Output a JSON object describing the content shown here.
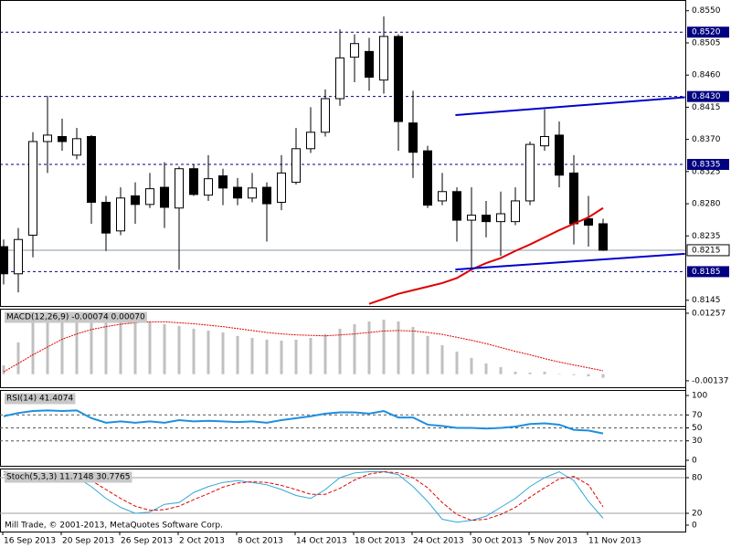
{
  "chart_data": [
    {
      "type": "candlestick",
      "categories": [
        "16 Sep 2013",
        null,
        null,
        null,
        "20 Sep 2013",
        null,
        null,
        null,
        "26 Sep 2013",
        null,
        null,
        null,
        "2 Oct 2013",
        null,
        null,
        null,
        "8 Oct 2013",
        null,
        null,
        null,
        "14 Oct 2013",
        null,
        null,
        null,
        "18 Oct 2013",
        null,
        null,
        null,
        "24 Oct 2013",
        null,
        null,
        null,
        "30 Oct 2013",
        null,
        null,
        null,
        "5 Nov 2013",
        null,
        null,
        null,
        "11 Nov 2013",
        null
      ],
      "open": [
        0.822,
        0.8182,
        0.8236,
        0.8367,
        0.8374,
        0.8348,
        0.8374,
        0.8282,
        0.8242,
        0.8291,
        0.8279,
        0.8303,
        0.8274,
        0.8329,
        0.8292,
        0.8319,
        0.8303,
        0.8288,
        0.8303,
        0.8282,
        0.831,
        0.8357,
        0.838,
        0.8427,
        0.8485,
        0.8493,
        0.8453,
        0.8514,
        0.8393,
        0.8354,
        0.8284,
        0.8297,
        0.8257,
        0.8264,
        0.8255,
        0.8255,
        0.8284,
        0.8361,
        0.8376,
        0.8323,
        0.8259,
        0.8252
      ],
      "high": [
        0.823,
        0.8246,
        0.838,
        0.8431,
        0.8399,
        0.8386,
        0.8376,
        0.8291,
        0.8303,
        0.831,
        0.8323,
        0.8338,
        0.8332,
        0.8335,
        0.8348,
        0.8329,
        0.8316,
        0.8323,
        0.831,
        0.8348,
        0.8386,
        0.8415,
        0.844,
        0.8524,
        0.8517,
        0.8512,
        0.8542,
        0.8517,
        0.8438,
        0.8361,
        0.8323,
        0.8303,
        0.8303,
        0.8284,
        0.8297,
        0.8303,
        0.8367,
        0.8412,
        0.8395,
        0.8348,
        0.8291,
        0.8259
      ],
      "low": [
        0.8167,
        0.8156,
        0.8205,
        0.8323,
        0.8354,
        0.8342,
        0.8252,
        0.8214,
        0.8236,
        0.8252,
        0.8274,
        0.8246,
        0.8188,
        0.8291,
        0.8284,
        0.8278,
        0.8278,
        0.8282,
        0.8227,
        0.8271,
        0.8307,
        0.8351,
        0.8374,
        0.8417,
        0.845,
        0.8438,
        0.8434,
        0.8354,
        0.8316,
        0.8274,
        0.8278,
        0.8227,
        0.8188,
        0.8233,
        0.8207,
        0.825,
        0.8278,
        0.8354,
        0.8303,
        0.8223,
        0.822,
        0.8214
      ],
      "close": [
        0.8182,
        0.823,
        0.8367,
        0.8376,
        0.8367,
        0.8371,
        0.8282,
        0.8239,
        0.8288,
        0.8279,
        0.8301,
        0.8275,
        0.8329,
        0.8293,
        0.8315,
        0.8302,
        0.8288,
        0.8302,
        0.828,
        0.8323,
        0.8357,
        0.838,
        0.8427,
        0.8484,
        0.8504,
        0.8457,
        0.8514,
        0.8395,
        0.8352,
        0.8278,
        0.8297,
        0.8257,
        0.8264,
        0.8255,
        0.8266,
        0.8284,
        0.8363,
        0.8374,
        0.832,
        0.8252,
        0.825,
        0.8215
      ],
      "up_color": "#ffffff",
      "down_color": "#000000",
      "ma": {
        "color": "#e00000",
        "values": [
          null,
          null,
          null,
          null,
          null,
          null,
          null,
          null,
          null,
          null,
          null,
          null,
          null,
          null,
          null,
          null,
          null,
          null,
          null,
          null,
          null,
          null,
          null,
          null,
          null,
          0.814,
          0.8147,
          0.8154,
          0.8159,
          0.8164,
          0.8169,
          0.8176,
          0.8188,
          0.8197,
          0.8204,
          0.8214,
          0.8223,
          0.8233,
          0.8243,
          0.8252,
          0.8261,
          0.8274
        ]
      },
      "trendlines": [
        {
          "color": "#0000cc",
          "x": [
            30.9,
            46.6
          ],
          "y": [
            0.8404,
            0.8429
          ]
        },
        {
          "color": "#0000cc",
          "x": [
            30.9,
            46.6
          ],
          "y": [
            0.8188,
            0.821
          ]
        }
      ],
      "levels": [
        {
          "value": 0.852,
          "label": "0.8520"
        },
        {
          "value": 0.843,
          "label": "0.8430"
        },
        {
          "value": 0.8335,
          "label": "0.8335"
        },
        {
          "value": 0.8185,
          "label": "0.8185"
        }
      ],
      "level_color": "#000080",
      "last": {
        "value": 0.8215,
        "label": "0.8215"
      },
      "ylim": [
        0.8137,
        0.8565
      ],
      "yticks": [
        {
          "value": 0.855,
          "label": "0.8550"
        },
        {
          "value": 0.8505,
          "label": "0.8505"
        },
        {
          "value": 0.846,
          "label": "0.8460"
        },
        {
          "value": 0.8415,
          "label": "0.8415"
        },
        {
          "value": 0.837,
          "label": "0.8370"
        },
        {
          "value": 0.8325,
          "label": "0.8325"
        },
        {
          "value": 0.828,
          "label": "0.8280"
        },
        {
          "value": 0.8235,
          "label": "0.8235"
        },
        {
          "value": 0.8145,
          "label": "0.8145"
        }
      ]
    },
    {
      "type": "macd",
      "title": "MACD(12,26,9) -0.00074 0.00070",
      "values": [
        0.00183,
        0.00654,
        0.01125,
        0.01257,
        0.01219,
        0.01163,
        0.01087,
        0.01069,
        0.01087,
        0.01087,
        0.01087,
        0.01031,
        0.00993,
        0.00937,
        0.00899,
        0.00861,
        0.00786,
        0.00748,
        0.00711,
        0.00692,
        0.00711,
        0.00748,
        0.00824,
        0.00937,
        0.01031,
        0.01087,
        0.01125,
        0.01087,
        0.00974,
        0.00786,
        0.00598,
        0.00466,
        0.00334,
        0.00221,
        0.00145,
        0.00051,
        0.00032,
        0.00051,
        0.0001,
        -0.0002,
        -0.00045,
        -0.00074
      ],
      "color": "#c0c0c0",
      "signal": {
        "color": "#e00000",
        "values": [
          0.0005,
          0.0022,
          0.004,
          0.0056,
          0.0072,
          0.0083,
          0.0092,
          0.0098,
          0.0103,
          0.0106,
          0.0108,
          0.0108,
          0.0106,
          0.0104,
          0.0101,
          0.0098,
          0.0094,
          0.009,
          0.0086,
          0.0083,
          0.0081,
          0.008,
          0.0079,
          0.0081,
          0.0083,
          0.0086,
          0.0089,
          0.009,
          0.0089,
          0.0086,
          0.0082,
          0.0076,
          0.007,
          0.0063,
          0.0055,
          0.0047,
          0.004,
          0.0032,
          0.0025,
          0.0019,
          0.0013,
          0.0007
        ]
      },
      "ylim": [
        -0.0027,
        0.0135
      ],
      "yticks": [
        0.01257,
        -0.00137
      ]
    },
    {
      "type": "line",
      "title": "RSI(14) 41.4074",
      "series": [
        {
          "color": "#1e8fe0",
          "width": 2,
          "values": [
            68,
            73,
            76,
            77,
            76,
            77,
            65,
            58,
            60,
            58,
            60,
            58,
            62,
            60,
            61,
            60,
            59,
            60,
            58,
            62,
            65,
            68,
            72,
            74,
            74,
            72,
            76,
            66,
            66,
            55,
            53,
            50,
            50,
            49,
            50,
            52,
            56,
            57,
            55,
            47,
            46,
            41.4074
          ]
        }
      ],
      "levels": [
        70,
        50,
        30
      ],
      "level_dash": true,
      "ylim": [
        -8.5,
        108.5
      ],
      "yticks": [
        100,
        70,
        50,
        30,
        0
      ]
    },
    {
      "type": "line",
      "title": "Stoch(5,3,3) 11.7148 30.7765",
      "series": [
        {
          "color": "#30a8d8",
          "width": 1,
          "values": [
            90,
            88,
            85,
            85,
            84,
            80,
            65,
            45,
            30,
            20,
            22,
            35,
            38,
            55,
            65,
            72,
            75,
            72,
            68,
            60,
            50,
            45,
            60,
            80,
            88,
            90,
            90,
            85,
            65,
            40,
            10,
            5,
            8,
            15,
            30,
            45,
            65,
            80,
            90,
            75,
            40,
            11.7148
          ]
        },
        {
          "color": "#e00000",
          "width": 1,
          "dash": true,
          "values": [
            85,
            86,
            86,
            86,
            85,
            83,
            75,
            60,
            45,
            32,
            25,
            26,
            32,
            43,
            53,
            64,
            71,
            73,
            72,
            67,
            60,
            52,
            52,
            62,
            76,
            86,
            90,
            88,
            80,
            63,
            38,
            18,
            8,
            10,
            18,
            30,
            47,
            63,
            78,
            82,
            68,
            30.7765
          ]
        }
      ],
      "levels": [
        20,
        80
      ],
      "level_dash": false,
      "ylim": [
        -10.8,
        95.4
      ],
      "yticks": [
        80,
        20,
        0
      ],
      "annotation": "Mill Trade, © 2001-2013, MetaQuotes Software Corp."
    }
  ]
}
